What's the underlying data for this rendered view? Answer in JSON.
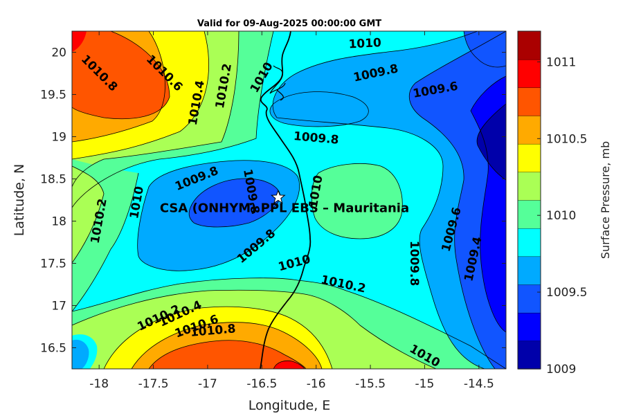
{
  "chart_data": {
    "type": "contour",
    "title": "Valid for 09-Aug-2025 00:00:00 GMT",
    "xlabel": "Longitude, E",
    "ylabel": "Latitude, N",
    "xlim": [
      -18.25,
      -14.25
    ],
    "ylim": [
      16.25,
      20.25
    ],
    "xticks": [
      -18,
      -17.5,
      -17,
      -16.5,
      -16,
      -15.5,
      -15,
      -14.5
    ],
    "xtick_labels": [
      "-18",
      "-17.5",
      "-17",
      "-16.5",
      "-16",
      "-15.5",
      "-15",
      "-14.5"
    ],
    "yticks": [
      16.5,
      17,
      17.5,
      18,
      18.5,
      19,
      19.5,
      20
    ],
    "ytick_labels": [
      "16.5",
      "17",
      "17.5",
      "18",
      "18.5",
      "19",
      "19.5",
      "20"
    ],
    "colorbar": {
      "label": "Surface Pressure, mb",
      "range": [
        1009,
        1011.2
      ],
      "ticks": [
        1009,
        1009.5,
        1010,
        1010.5,
        1011
      ],
      "tick_labels": [
        "1009",
        "1009.5",
        "1010",
        "1010.5",
        "1011"
      ],
      "colors": [
        "#0000aa",
        "#0000ff",
        "#1155ff",
        "#00aaff",
        "#00ffff",
        "#55ff99",
        "#aaff55",
        "#ffff00",
        "#ffaa00",
        "#ff5500",
        "#ff0000",
        "#aa0000"
      ]
    },
    "contour_labels": [
      {
        "text": "1010.8",
        "lon": -18.0,
        "lat": 19.75,
        "rot": 45
      },
      {
        "text": "1010.6",
        "lon": -17.4,
        "lat": 19.75,
        "rot": 45
      },
      {
        "text": "1010.4",
        "lon": -17.1,
        "lat": 19.4,
        "rot": -80
      },
      {
        "text": "1010.2",
        "lon": -16.85,
        "lat": 19.6,
        "rot": -80
      },
      {
        "text": "1010",
        "lon": -16.5,
        "lat": 19.7,
        "rot": -60
      },
      {
        "text": "1010",
        "lon": -15.55,
        "lat": 20.1,
        "rot": -3
      },
      {
        "text": "1009.8",
        "lon": -15.45,
        "lat": 19.75,
        "rot": -12
      },
      {
        "text": "1009.6",
        "lon": -14.9,
        "lat": 19.55,
        "rot": -10
      },
      {
        "text": "1009.8",
        "lon": -16.0,
        "lat": 18.98,
        "rot": 5
      },
      {
        "text": "1009.8",
        "lon": -17.1,
        "lat": 18.5,
        "rot": -22
      },
      {
        "text": "1009.8",
        "lon": -16.6,
        "lat": 18.35,
        "rot": 80
      },
      {
        "text": "1010",
        "lon": -16.0,
        "lat": 18.35,
        "rot": -80
      },
      {
        "text": "1010.2",
        "lon": -18.0,
        "lat": 18.0,
        "rot": -80
      },
      {
        "text": "1010",
        "lon": -17.65,
        "lat": 18.22,
        "rot": -80
      },
      {
        "text": "1009.8",
        "lon": -16.55,
        "lat": 17.7,
        "rot": -40
      },
      {
        "text": "1010",
        "lon": -16.2,
        "lat": 17.5,
        "rot": -15
      },
      {
        "text": "1010.2",
        "lon": -15.75,
        "lat": 17.25,
        "rot": 12
      },
      {
        "text": "1009.6",
        "lon": -14.75,
        "lat": 17.9,
        "rot": -75
      },
      {
        "text": "1009.8",
        "lon": -15.1,
        "lat": 17.5,
        "rot": 90
      },
      {
        "text": "1009.4",
        "lon": -14.55,
        "lat": 17.55,
        "rot": -78
      },
      {
        "text": "1010.2",
        "lon": -17.45,
        "lat": 16.85,
        "rot": -25
      },
      {
        "text": "1010.4",
        "lon": -17.25,
        "lat": 16.9,
        "rot": -25
      },
      {
        "text": "1010.6",
        "lon": -17.1,
        "lat": 16.75,
        "rot": -20
      },
      {
        "text": "1010.8",
        "lon": -16.95,
        "lat": 16.7,
        "rot": -5
      },
      {
        "text": "1010",
        "lon": -15.0,
        "lat": 16.4,
        "rot": 30
      }
    ],
    "station": {
      "name": "CSA (ONHYM) PPL EBS  – Mauritania",
      "lon": -16.35,
      "lat": 18.28
    }
  }
}
